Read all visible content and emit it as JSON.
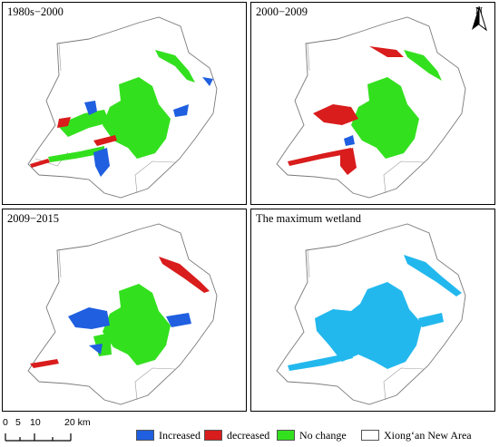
{
  "panels": [
    {
      "title": "1980s−2000"
    },
    {
      "title": "2000−2009"
    },
    {
      "title": "2009−2015"
    },
    {
      "title": "The maximum wetland"
    }
  ],
  "north_arrow": {
    "label": "N"
  },
  "scale_bar": {
    "ticks": [
      "0",
      "5",
      "10",
      "20 km"
    ]
  },
  "legend": {
    "items": [
      {
        "label": "Increased",
        "color": "#1f5fe0"
      },
      {
        "label": "decreased",
        "color": "#d91c1c"
      },
      {
        "label": "No change",
        "color": "#33e01e"
      },
      {
        "label": "Xiong‘an New Area",
        "color": "#ffffff"
      }
    ]
  },
  "colors": {
    "increased": "#1f5fe0",
    "decreased": "#d91c1c",
    "no_change": "#33e01e",
    "max_wetland": "#22b8ee",
    "boundary": "#777777"
  }
}
